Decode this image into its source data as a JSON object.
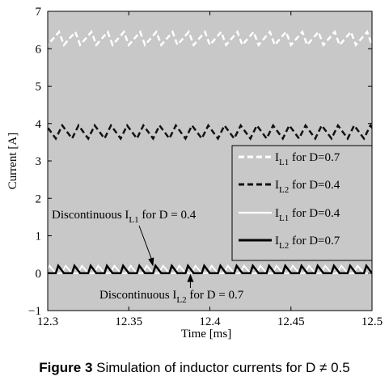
{
  "chart_data": {
    "type": "line",
    "xlabel": "Time [ms]",
    "ylabel": "Current [A]",
    "xlim": [
      12.3,
      12.5
    ],
    "ylim": [
      -1,
      7
    ],
    "xticks": [
      "12.3",
      "12.35",
      "12.4",
      "12.45",
      "12.5"
    ],
    "yticks": [
      "−1",
      "0",
      "1",
      "2",
      "3",
      "4",
      "5",
      "6",
      "7"
    ],
    "background": "#c8c8c8",
    "grid": false,
    "legend_position": "right",
    "period_ms": 0.01,
    "series": [
      {
        "name_main": "I",
        "name_sub": "L1",
        "name_rest": " for D=0.7",
        "color": "#ffffff",
        "dash": "dashed",
        "width": 2.5,
        "waveform": {
          "min": 6.1,
          "max": 6.45,
          "rise_fraction": 0.7,
          "phase": 0.0
        }
      },
      {
        "name_main": "I",
        "name_sub": "L2",
        "name_rest": " for D=0.4",
        "color": "#111111",
        "dash": "dashed",
        "width": 2.5,
        "waveform": {
          "min": 3.6,
          "max": 3.95,
          "rise_fraction": 0.4,
          "phase": 0.5
        }
      },
      {
        "name_main": "I",
        "name_sub": "L1",
        "name_rest": " for D=0.4",
        "color": "#ffffff",
        "dash": "solid",
        "width": 1.8,
        "waveform": {
          "min": 0.0,
          "max": 0.2,
          "rise_fraction": 0.4,
          "zero_fraction": 0.35,
          "phase": 0.5
        }
      },
      {
        "name_main": "I",
        "name_sub": "L2",
        "name_rest": " for D=0.7",
        "color": "#000000",
        "dash": "solid",
        "width": 2.5,
        "waveform": {
          "min": 0.0,
          "max": 0.2,
          "rise_fraction": 0.3,
          "zero_fraction": 0.5,
          "phase": 0.0
        }
      }
    ],
    "annotations": [
      {
        "text_main": "Discontinuous I",
        "text_sub": "L1",
        "text_rest": " for D = 0.4",
        "point": [
          12.365,
          0.18
        ]
      },
      {
        "text_main": "Discontinuous I",
        "text_sub": "L2",
        "text_rest": " for D = 0.7",
        "point": [
          12.388,
          -0.02
        ]
      }
    ]
  },
  "caption": {
    "label": "Figure 3",
    "text": " Simulation of inductor currents for D ≠ 0.5"
  }
}
